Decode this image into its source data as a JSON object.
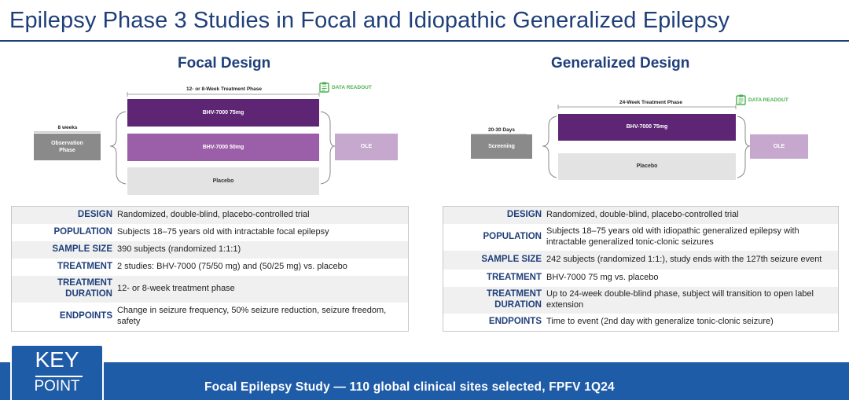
{
  "title": "Epilepsy Phase 3 Studies in Focal and Idiopathic Generalized Epilepsy",
  "focal": {
    "heading": "Focal Design",
    "diagram": {
      "treatment_phase_label": "12- or 8-Week Treatment Phase",
      "data_readout": "DATA READOUT",
      "obs_weeks": "8 weeks",
      "obs_label": "Observation Phase",
      "arm1": "BHV-7000 75mg",
      "arm2": "BHV-7000 50mg",
      "arm3": "Placebo",
      "ole": "OLE"
    },
    "table": [
      {
        "label": "DESIGN",
        "value": "Randomized, double-blind, placebo-controlled trial"
      },
      {
        "label": "POPULATION",
        "value": "Subjects 18–75 years old with intractable focal epilepsy"
      },
      {
        "label": "SAMPLE SIZE",
        "value": "390 subjects (randomized 1:1:1)"
      },
      {
        "label": "TREATMENT",
        "value": "2 studies: BHV-7000 (75/50 mg) and (50/25 mg) vs. placebo"
      },
      {
        "label": "TREATMENT DURATION",
        "value": "12- or 8-week treatment phase"
      },
      {
        "label": "ENDPOINTS",
        "value": "Change in seizure frequency, 50% seizure reduction, seizure freedom, safety"
      }
    ]
  },
  "generalized": {
    "heading": "Generalized Design",
    "diagram": {
      "treatment_phase_label": "24-Week Treatment Phase",
      "data_readout": "DATA READOUT",
      "screen_days": "20-30 Days",
      "screen_label": "Screening",
      "arm1": "BHV-7000 75mg",
      "arm2": "Placebo",
      "ole": "OLE"
    },
    "table": [
      {
        "label": "DESIGN",
        "value": "Randomized, double-blind, placebo-controlled trial"
      },
      {
        "label": "POPULATION",
        "value": "Subjects 18–75 years old with idiopathic generalized epilepsy with intractable generalized tonic-clonic seizures"
      },
      {
        "label": "SAMPLE SIZE",
        "value": "242 subjects (randomized 1:1:), study ends with the 127th seizure event"
      },
      {
        "label": "TREATMENT",
        "value": "BHV-7000 75 mg vs. placebo"
      },
      {
        "label": "TREATMENT DURATION",
        "value": "Up to 24-week double-blind phase, subject will transition to open label extension"
      },
      {
        "label": "ENDPOINTS",
        "value": "Time to event (2nd day with generalize tonic-clonic seizure)"
      }
    ]
  },
  "key_point": {
    "badge_top": "KEY",
    "badge_bottom": "POINT",
    "text": "Focal Epilepsy Study — 110 global clinical sites selected, FPFV 1Q24"
  },
  "colors": {
    "brand_blue": "#1f3f7a",
    "bar_blue": "#1f5ca8",
    "purple_dark": "#5d2573",
    "purple_mid": "#9b5ea8",
    "purple_light": "#c6a8cf",
    "readout_green": "#4caf50"
  }
}
